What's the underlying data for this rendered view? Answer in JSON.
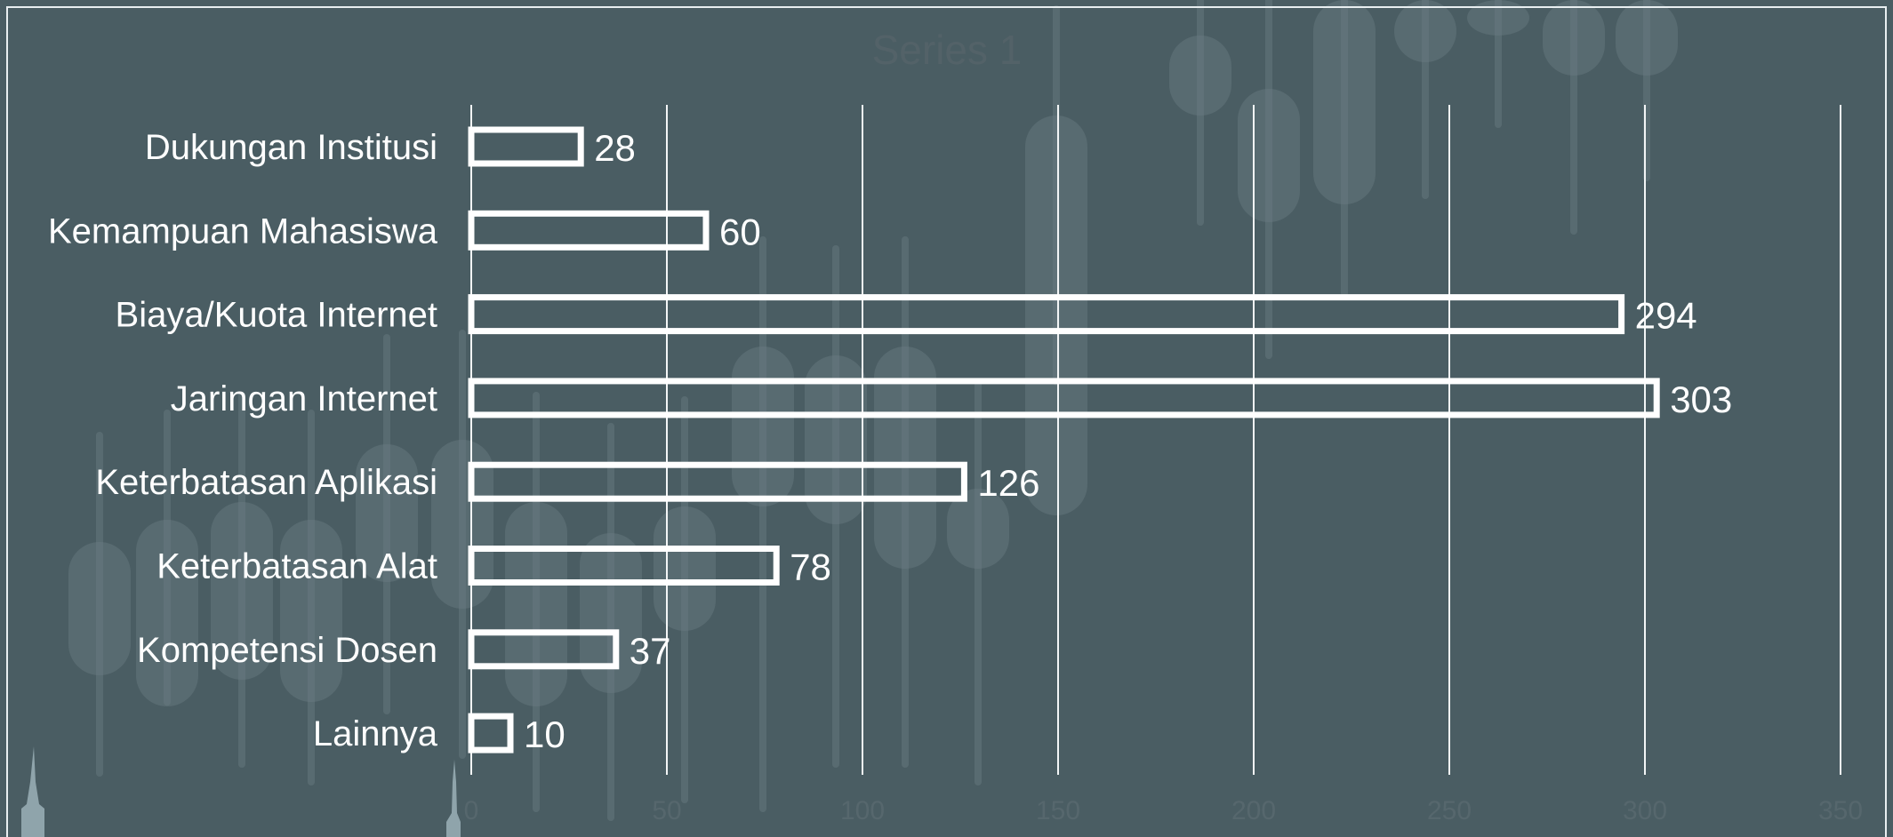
{
  "colors": {
    "background": "#4a5d63",
    "bar_outline": "#ffffff",
    "gridline": "#f2f5f6",
    "label_text": "#ffffff",
    "title_text": "#536268",
    "decor_candles": "#6b7d83",
    "decor_skyline": "#8fa4ab",
    "tick_text": "#56676d"
  },
  "chart_data": {
    "type": "bar",
    "orientation": "horizontal",
    "title": "Series 1",
    "categories": [
      "Dukungan Institusi",
      "Kemampuan Mahasiswa",
      "Biaya/Kuota Internet",
      "Jaringan Internet",
      "Keterbatasan Aplikasi",
      "Keterbatasan Alat",
      "Kompetensi Dosen",
      "Lainnya"
    ],
    "values": [
      28,
      60,
      294,
      303,
      126,
      78,
      37,
      10
    ],
    "xlim": [
      0,
      350
    ],
    "x_ticks": [
      0,
      50,
      100,
      150,
      200,
      250,
      300,
      350
    ],
    "grid": true,
    "legend": "none",
    "data_labels": true
  }
}
